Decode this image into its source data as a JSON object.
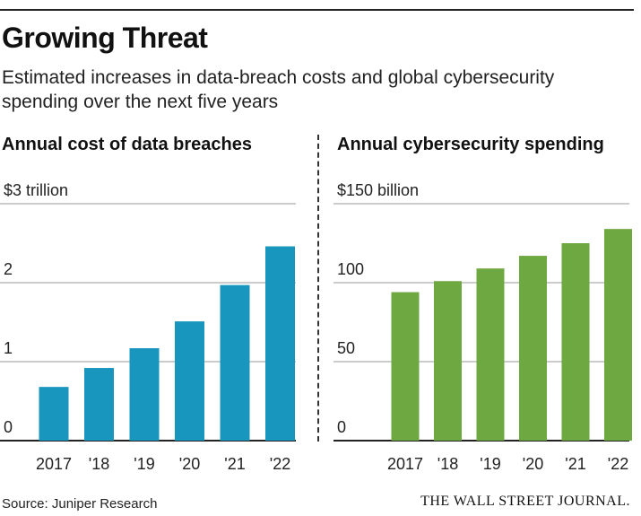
{
  "header": {
    "title": "Growing Threat",
    "subtitle": "Estimated increases in data-breach costs and global cybersecurity spending over the next five years"
  },
  "footer": {
    "source": "Source: Juniper Research",
    "logo": "THE WALL STREET JOURNAL."
  },
  "chart_data": [
    {
      "type": "bar",
      "title": "Annual cost of data breaches",
      "unit_label": "$3 trillion",
      "categories": [
        "2017",
        "'18",
        "'19",
        "'20",
        "'21",
        "'22"
      ],
      "values": [
        0.68,
        0.92,
        1.17,
        1.51,
        1.97,
        2.46
      ],
      "ylim": [
        0,
        3
      ],
      "ticks": [
        0,
        1,
        2,
        3
      ],
      "tick_labels": [
        "0",
        "1",
        "2",
        "$3 trillion"
      ],
      "color": "#1896be",
      "grid": true
    },
    {
      "type": "bar",
      "title": "Annual cybersecurity spending",
      "unit_label": "$150 billion",
      "categories": [
        "2017",
        "'18",
        "'19",
        "'20",
        "'21",
        "'22"
      ],
      "values": [
        94,
        101,
        109,
        117,
        125,
        134
      ],
      "ylim": [
        0,
        150
      ],
      "ticks": [
        0,
        50,
        100,
        150
      ],
      "tick_labels": [
        "0",
        "50",
        "100",
        "$150 billion"
      ],
      "color": "#6ea840",
      "grid": true
    }
  ]
}
